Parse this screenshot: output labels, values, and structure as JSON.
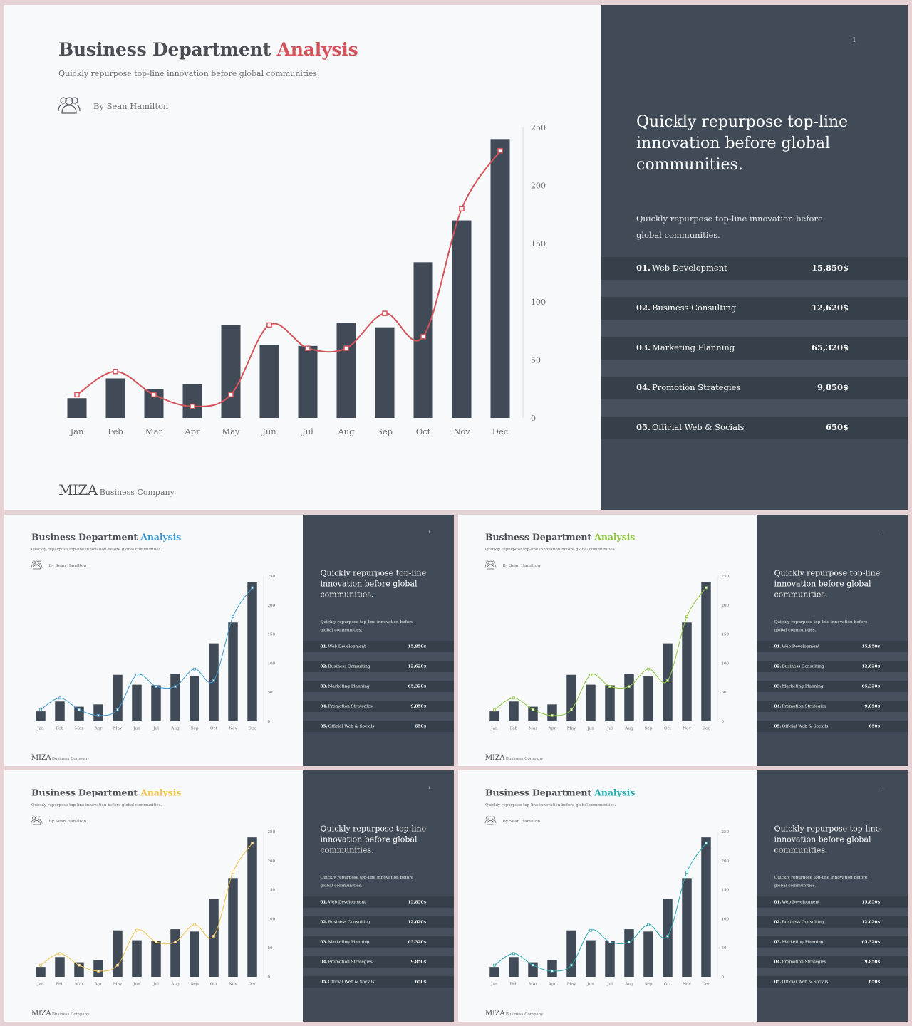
{
  "slide": {
    "title_main": "Business Department",
    "title_accent": "Analysis",
    "subtitle": "Quickly repurpose top-line innovation before global communities.",
    "author": "By Sean Hamilton",
    "brand_name": "MIZA",
    "brand_suffix": "Business Company",
    "page_number": "1",
    "quote": "Quickly repurpose top-line innovation before global communities.",
    "paragraph": "Quickly repurpose top-line innovation before global communities.",
    "services": [
      {
        "no": "01.",
        "label": "Web Development",
        "value": "15,850$"
      },
      {
        "no": "02.",
        "label": "Business Consulting",
        "value": "12,620$"
      },
      {
        "no": "03.",
        "label": "Marketing Planning",
        "value": "65,320$"
      },
      {
        "no": "04.",
        "label": "Promotion Strategies",
        "value": "9,850$"
      },
      {
        "no": "05.",
        "label": "Official Web & Socials",
        "value": "650$"
      }
    ]
  },
  "variants": [
    {
      "name": "red",
      "accent": "#d4545b"
    },
    {
      "name": "blue",
      "accent": "#3b96cf"
    },
    {
      "name": "green",
      "accent": "#8cc63f"
    },
    {
      "name": "yellow",
      "accent": "#f0c24a"
    },
    {
      "name": "teal",
      "accent": "#27a9b2"
    }
  ],
  "colors": {
    "bar": "#414b57",
    "dark_panel": "#414b57",
    "light_panel": "#f8f9fa"
  },
  "chart_data": {
    "type": "bar",
    "categories": [
      "Jan",
      "Feb",
      "Mar",
      "Apr",
      "May",
      "Jun",
      "Jul",
      "Aug",
      "Sep",
      "Oct",
      "Nov",
      "Dec"
    ],
    "series": [
      {
        "values": [
          17,
          34,
          25,
          29,
          80,
          63,
          62,
          82,
          78,
          134,
          170,
          240
        ]
      },
      {
        "values": [
          20,
          40,
          20,
          10,
          20,
          80,
          60,
          60,
          90,
          70,
          180,
          230
        ]
      }
    ],
    "y_ticks": [
      "250",
      "200",
      "150",
      "100",
      "50",
      "0"
    ],
    "ylim": [
      0,
      250
    ],
    "y_axis_side": "right",
    "grid": false
  }
}
